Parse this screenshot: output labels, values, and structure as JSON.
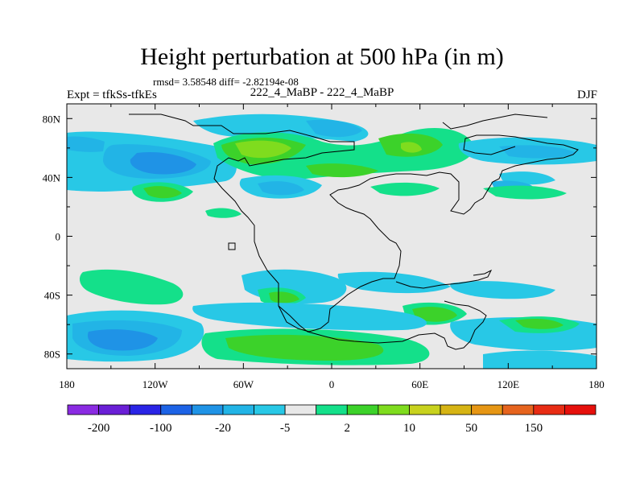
{
  "title": "Height perturbation at 500 hPa (in m)",
  "stats": "rmsd= 3.58548 diff= -2.82194e-08",
  "left_label": "Expt = tfkSs-tfkEs",
  "center_label": "222_4_MaBP - 222_4_MaBP",
  "right_label": "DJF",
  "map": {
    "lon_range": [
      -180,
      180
    ],
    "lat_range": [
      -90,
      90
    ],
    "x_ticks": [
      {
        "value": -180,
        "label": "180"
      },
      {
        "value": -120,
        "label": "120W"
      },
      {
        "value": -60,
        "label": "60W"
      },
      {
        "value": 0,
        "label": "0"
      },
      {
        "value": 60,
        "label": "60E"
      },
      {
        "value": 120,
        "label": "120E"
      },
      {
        "value": 180,
        "label": "180"
      }
    ],
    "y_ticks": [
      {
        "value": 80,
        "label": "80N"
      },
      {
        "value": 40,
        "label": "40N"
      },
      {
        "value": 0,
        "label": "0"
      },
      {
        "value": -40,
        "label": "40S"
      },
      {
        "value": -80,
        "label": "80S"
      }
    ]
  },
  "colorbar": {
    "colors": [
      "#8a2be2",
      "#6a1fd6",
      "#2a24e6",
      "#1d63e6",
      "#1f93e6",
      "#22b4e6",
      "#28c8e6",
      "#e8e8e8",
      "#14e08a",
      "#3cd22a",
      "#7fdc1e",
      "#c8d21e",
      "#d6b414",
      "#e69614",
      "#e6641e",
      "#e82c14",
      "#e6100c"
    ],
    "labels": [
      "-200",
      "-100",
      "-20",
      "-5",
      "2",
      "10",
      "50",
      "150"
    ]
  },
  "field_regions": [
    {
      "name": "pacific-nh-low",
      "lon": -135,
      "lat": 55,
      "rx": 38,
      "ry": 14,
      "level": "neg-mid"
    },
    {
      "name": "pacific-nh-low-core",
      "lon": -135,
      "lat": 55,
      "rx": 22,
      "ry": 8,
      "level": "neg-strong"
    },
    {
      "name": "atlantic-high",
      "lon": -40,
      "lat": 60,
      "rx": 30,
      "ry": 12,
      "level": "pos-strong"
    },
    {
      "name": "eurasia-high",
      "lon": 50,
      "lat": 60,
      "rx": 25,
      "ry": 12,
      "level": "pos-mid"
    },
    {
      "name": "siberia-low",
      "lon": 140,
      "lat": 62,
      "rx": 35,
      "ry": 14,
      "level": "neg-weak"
    },
    {
      "name": "pacific-sh-low",
      "lon": -140,
      "lat": -75,
      "rx": 30,
      "ry": 10,
      "level": "neg-strong"
    },
    {
      "name": "southern-ocean-high",
      "lon": 0,
      "lat": -75,
      "rx": 60,
      "ry": 8,
      "level": "pos-mid"
    },
    {
      "name": "indian-ocean-high",
      "lon": 150,
      "lat": -60,
      "rx": 30,
      "ry": 9,
      "level": "pos-weak"
    }
  ]
}
